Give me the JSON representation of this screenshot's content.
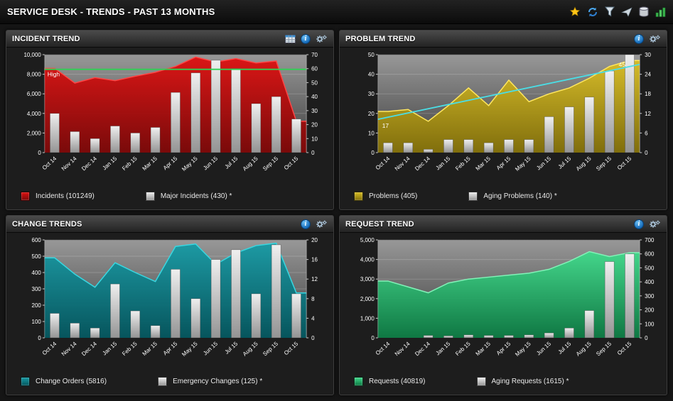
{
  "theme": {
    "plot_bg_top": "#989898",
    "plot_bg_bottom": "#3e3e3e",
    "grid_line": "rgba(255,255,255,0.18)",
    "tick_text": "#ffffff"
  },
  "icons": {
    "info_glyph": "i"
  },
  "header": {
    "title": "SERVICE DESK - TRENDS - PAST 13 MONTHS",
    "toolbar_icons": [
      "star-icon",
      "refresh-icon",
      "filter-icon",
      "send-icon",
      "database-icon",
      "bar-chart-icon"
    ]
  },
  "chart_data": [
    {
      "type": "area+bar",
      "title": "INCIDENT TREND",
      "categories": [
        "Oct 14",
        "Nov 14",
        "Dec 14",
        "Jan 15",
        "Feb 15",
        "Mar 15",
        "Apr 15",
        "May 15",
        "Jun 15",
        "Jul 15",
        "Aug 15",
        "Sep 15",
        "Oct 15"
      ],
      "left_axis": {
        "min": 0,
        "max": 10000,
        "step": 2000
      },
      "right_axis": {
        "min": 0,
        "max": 70,
        "step": 10
      },
      "area_series": {
        "name": "Incidents (101249)",
        "axis": "left",
        "color": "#dd1111",
        "color2": "#7c0808",
        "line_color": "#ff4545",
        "values": [
          8600,
          7100,
          7650,
          7350,
          7800,
          8200,
          8800,
          9750,
          9250,
          9600,
          9150,
          9350,
          3200
        ]
      },
      "bar_series": {
        "name": "Major Incidents (430) *",
        "axis": "right",
        "color": "#efefef",
        "color2": "#949494",
        "values": [
          28,
          15,
          10,
          19,
          14,
          18,
          43,
          57,
          66,
          60,
          35,
          40,
          24
        ]
      },
      "threshold": {
        "label": "High",
        "value": 8500,
        "color": "#2fd153"
      }
    },
    {
      "type": "area+bar",
      "title": "PROBLEM TREND",
      "categories": [
        "Oct 14",
        "Nov 14",
        "Dec 14",
        "Jan 15",
        "Feb 15",
        "Mar 15",
        "Apr 15",
        "May 15",
        "Jun 15",
        "Jul 15",
        "Aug 15",
        "Sep 15",
        "Oct 15"
      ],
      "left_axis": {
        "min": 0,
        "max": 50,
        "step": 10
      },
      "right_axis": {
        "min": 0,
        "max": 30,
        "step": 6
      },
      "area_series": {
        "name": "Problems (405)",
        "axis": "left",
        "color": "#d8bd25",
        "color2": "#83700a",
        "line_color": "#ffe75e",
        "values": [
          21,
          22,
          16,
          24,
          33,
          24,
          37,
          26,
          30,
          33,
          38,
          44,
          47
        ]
      },
      "bar_series": {
        "name": "Aging Problems (140) *",
        "axis": "right",
        "color": "#efefef",
        "color2": "#949494",
        "values": [
          3,
          3,
          1,
          4,
          4,
          3,
          4,
          4,
          11,
          14,
          17,
          25,
          30
        ]
      },
      "trend": {
        "start": 17,
        "end": 45,
        "start_label": "17",
        "end_label": "45",
        "color": "#4adee6"
      }
    },
    {
      "type": "area+bar",
      "title": "CHANGE TRENDS",
      "categories": [
        "Oct 14",
        "Nov 14",
        "Dec 14",
        "Jan 15",
        "Feb 15",
        "Mar 15",
        "Apr 15",
        "May 15",
        "Jun 15",
        "Jul 15",
        "Aug 15",
        "Sep 15",
        "Oct 15"
      ],
      "left_axis": {
        "min": 0,
        "max": 600,
        "step": 100
      },
      "right_axis": {
        "min": 0,
        "max": 20,
        "step": 4
      },
      "area_series": {
        "name": "Change Orders (5816)",
        "axis": "left",
        "color": "#189aa4",
        "color2": "#04565e",
        "line_color": "#38d7e1",
        "values": [
          490,
          390,
          310,
          460,
          400,
          345,
          560,
          575,
          450,
          520,
          565,
          580,
          275
        ]
      },
      "bar_series": {
        "name": "Emergency Changes (125) *",
        "axis": "right",
        "color": "#efefef",
        "color2": "#949494",
        "values": [
          5,
          3,
          2,
          11,
          5.5,
          2.5,
          14,
          8,
          16,
          18,
          9,
          19,
          9
        ]
      }
    },
    {
      "type": "area+bar",
      "title": "REQUEST TREND",
      "categories": [
        "Oct 14",
        "Nov 14",
        "Dec 14",
        "Jan 15",
        "Feb 15",
        "Mar 15",
        "Apr 15",
        "May 15",
        "Jun 15",
        "Jul 15",
        "Aug 15",
        "Sep 15",
        "Oct 15"
      ],
      "left_axis": {
        "min": 0,
        "max": 5000,
        "step": 1000
      },
      "right_axis": {
        "min": 0,
        "max": 700,
        "step": 100
      },
      "area_series": {
        "name": "Requests (40819)",
        "axis": "left",
        "color": "#41d98b",
        "color2": "#0d7a43",
        "line_color": "#82f2b8",
        "values": [
          2900,
          2600,
          2300,
          2800,
          3000,
          3100,
          3200,
          3300,
          3500,
          3900,
          4400,
          4150,
          4350
        ]
      },
      "bar_series": {
        "name": "Aging Requests (1615) *",
        "axis": "right",
        "color": "#efefef",
        "color2": "#949494",
        "values": [
          0,
          0,
          17,
          14,
          21,
          17,
          17,
          21,
          35,
          70,
          195,
          545,
          600
        ]
      }
    }
  ]
}
